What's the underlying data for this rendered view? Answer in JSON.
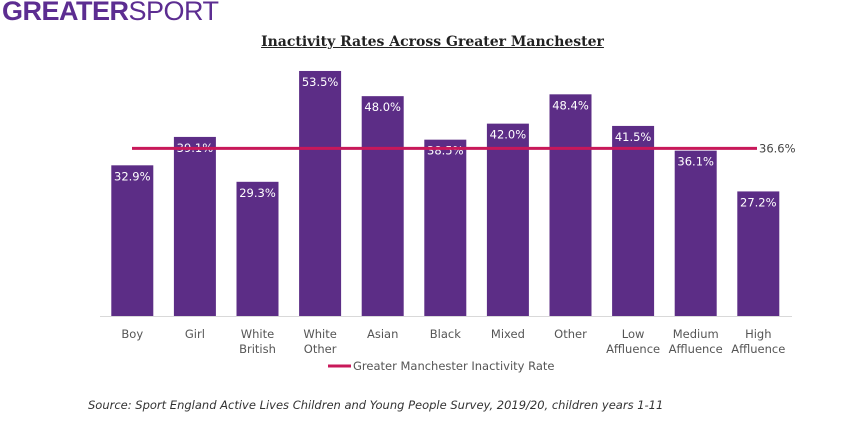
{
  "logo": {
    "bold": "GREATER",
    "light": "SPORT"
  },
  "chart_data": {
    "type": "bar",
    "title": "Inactivity Rates Across Greater Manchester",
    "categories": [
      "Boy",
      "Girl",
      "White British",
      "White Other",
      "Asian",
      "Black",
      "Mixed",
      "Other",
      "Low Affluence",
      "Medium Affluence",
      "High Affluence"
    ],
    "values": [
      32.9,
      39.1,
      29.3,
      53.5,
      48.0,
      38.5,
      42.0,
      48.4,
      41.5,
      36.1,
      27.2
    ],
    "data_labels": [
      "32.9%",
      "39.1%",
      "29.3%",
      "53.5%",
      "48.0%",
      "38.5%",
      "42.0%",
      "48.4%",
      "41.5%",
      "36.1%",
      "27.2%"
    ],
    "bar_color": "#5c2d86",
    "reference_line": {
      "name": "Greater Manchester Inactivity Rate",
      "value": 36.6,
      "label": "36.6%",
      "color": "#c8185a"
    },
    "ylim": [
      0,
      55
    ],
    "grid": false,
    "legend": "bottom"
  },
  "source": "Source: Sport England Active Lives Children and Young People Survey, 2019/20, children years 1-11"
}
